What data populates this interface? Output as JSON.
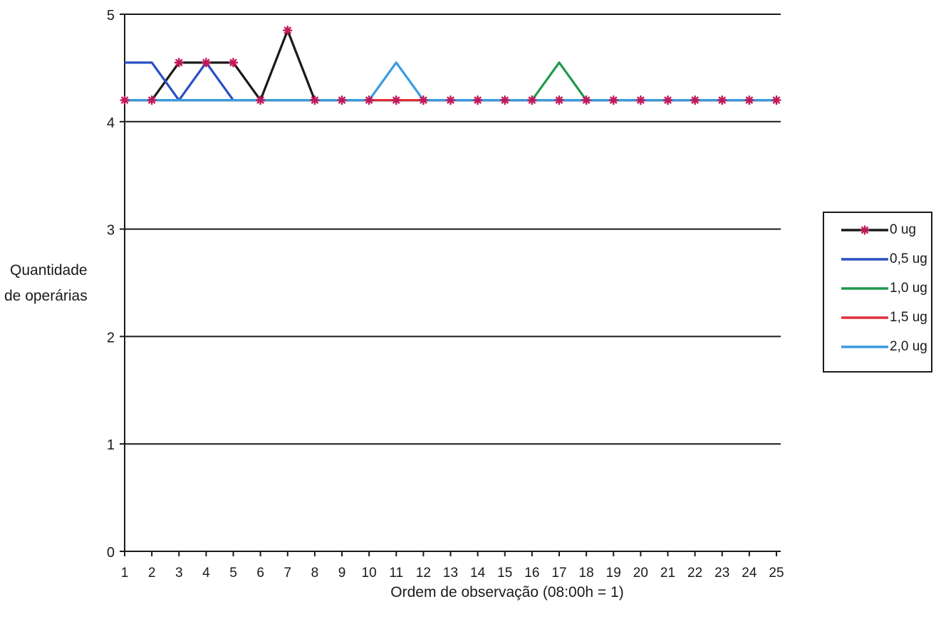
{
  "chart_data": {
    "type": "line",
    "xlabel": "Ordem de observação (08:00h = 1)",
    "ylabel_lines": [
      "Quantidade",
      "de operárias"
    ],
    "ylim": [
      0,
      5
    ],
    "yticks": [
      0,
      1,
      2,
      3,
      4,
      5
    ],
    "x": [
      1,
      2,
      3,
      4,
      5,
      6,
      7,
      8,
      9,
      10,
      11,
      12,
      13,
      14,
      15,
      16,
      17,
      18,
      19,
      20,
      21,
      22,
      23,
      24,
      25
    ],
    "grid": "horizontal major gridlines",
    "legend_position": "right",
    "series": [
      {
        "name": "0 ug",
        "color": "#1a1a1a",
        "marker": "asterisk",
        "values": [
          4.2,
          4.2,
          4.55,
          4.55,
          4.55,
          4.2,
          4.85,
          4.2,
          4.2,
          4.2,
          4.2,
          4.2,
          4.2,
          4.2,
          4.2,
          4.2,
          4.2,
          4.2,
          4.2,
          4.2,
          4.2,
          4.2,
          4.2,
          4.2,
          4.2
        ]
      },
      {
        "name": "0,5 ug",
        "color": "#2a4fc4",
        "marker": "none",
        "values": [
          4.55,
          4.55,
          4.2,
          4.55,
          4.2,
          4.2,
          4.2,
          4.2,
          4.2,
          4.2,
          4.2,
          4.2,
          4.2,
          4.2,
          4.2,
          4.2,
          4.2,
          4.2,
          4.2,
          4.2,
          4.2,
          4.2,
          4.2,
          4.2,
          4.2
        ]
      },
      {
        "name": "1,0 ug",
        "color": "#1f9a4e",
        "marker": "none",
        "values": [
          4.2,
          4.2,
          4.2,
          4.2,
          4.2,
          4.2,
          4.2,
          4.2,
          4.2,
          4.2,
          4.2,
          4.2,
          4.2,
          4.2,
          4.2,
          4.2,
          4.55,
          4.2,
          4.2,
          4.2,
          4.2,
          4.2,
          4.2,
          4.2,
          4.2
        ]
      },
      {
        "name": "1,5 ug",
        "color": "#e0303a",
        "marker": "none",
        "values": [
          4.2,
          4.2,
          4.2,
          4.2,
          4.2,
          4.2,
          4.2,
          4.2,
          4.2,
          4.2,
          4.2,
          4.2,
          4.2,
          4.2,
          4.2,
          4.2,
          4.2,
          4.2,
          4.2,
          4.2,
          4.2,
          4.2,
          4.2,
          4.2,
          4.2
        ]
      },
      {
        "name": "2,0 ug",
        "color": "#3a9be0",
        "marker": "none",
        "values": [
          4.2,
          4.2,
          4.2,
          4.2,
          4.2,
          4.2,
          4.2,
          4.2,
          4.2,
          4.2,
          4.55,
          4.2,
          4.2,
          4.2,
          4.2,
          4.2,
          4.2,
          4.2,
          4.2,
          4.2,
          4.2,
          4.2,
          4.2,
          4.2,
          4.2
        ]
      }
    ],
    "marker_color": "#c2185b"
  }
}
